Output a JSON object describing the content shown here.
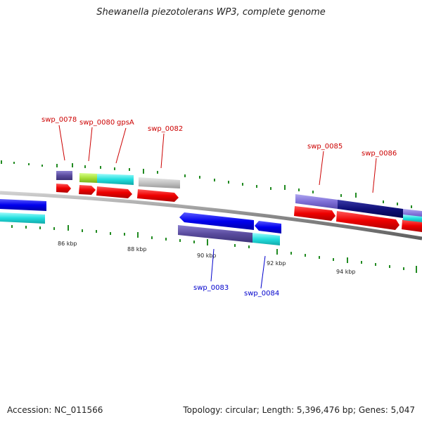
{
  "title": "Shewanella piezotolerans WP3, complete genome",
  "footer": {
    "accession": "Accession: NC_011566",
    "summary": "Topology: circular; Length: 5,396,476 bp; Genes: 5,047"
  },
  "colors": {
    "forward_label": "#cc0000",
    "reverse_label": "#0000cc",
    "tick": "#228b22",
    "backbone": "#808080"
  },
  "tick_labels": [
    "86 kbp",
    "88 kbp",
    "90 kbp",
    "92 kbp",
    "94 kbp"
  ],
  "genes_forward": [
    "swp_0078",
    "swp_0080",
    "gpsA",
    "swp_0082",
    "swp_0085",
    "swp_0086"
  ],
  "genes_reverse": [
    "swp_0083",
    "swp_0084"
  ]
}
